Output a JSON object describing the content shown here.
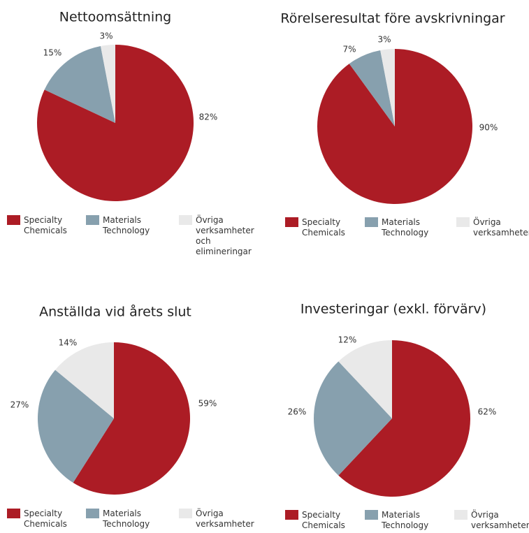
{
  "chart_data": [
    {
      "type": "pie",
      "title": "Nettoomsättning",
      "categories": [
        "Specialty Chemicals",
        "Materials Technology",
        "Övriga verksamheter och elimineringar"
      ],
      "values": [
        82,
        15,
        3
      ],
      "value_labels": [
        "82%",
        "15%",
        "3%"
      ],
      "colors": [
        "#ac1c25",
        "#87a0ae",
        "#e9e9e9"
      ]
    },
    {
      "type": "pie",
      "title": "Rörelseresultat före avskrivningar",
      "categories": [
        "Specialty Chemicals",
        "Materials Technology",
        "Övriga verksamheter"
      ],
      "values": [
        90,
        7,
        3
      ],
      "value_labels": [
        "90%",
        "7%",
        "3%"
      ],
      "colors": [
        "#ac1c25",
        "#87a0ae",
        "#e9e9e9"
      ]
    },
    {
      "type": "pie",
      "title": "Anställda vid årets slut",
      "categories": [
        "Specialty Chemicals",
        "Materials Technology",
        "Övriga verksamheter"
      ],
      "values": [
        59,
        27,
        14
      ],
      "value_labels": [
        "59%",
        "27%",
        "14%"
      ],
      "colors": [
        "#ac1c25",
        "#87a0ae",
        "#e9e9e9"
      ]
    },
    {
      "type": "pie",
      "title": "Investeringar (exkl. förvärv)",
      "categories": [
        "Specialty Chemicals",
        "Materials Technology",
        "Övriga verksamheter"
      ],
      "values": [
        62,
        26,
        12
      ],
      "value_labels": [
        "62%",
        "26%",
        "12%"
      ],
      "colors": [
        "#ac1c25",
        "#87a0ae",
        "#e9e9e9"
      ]
    }
  ]
}
